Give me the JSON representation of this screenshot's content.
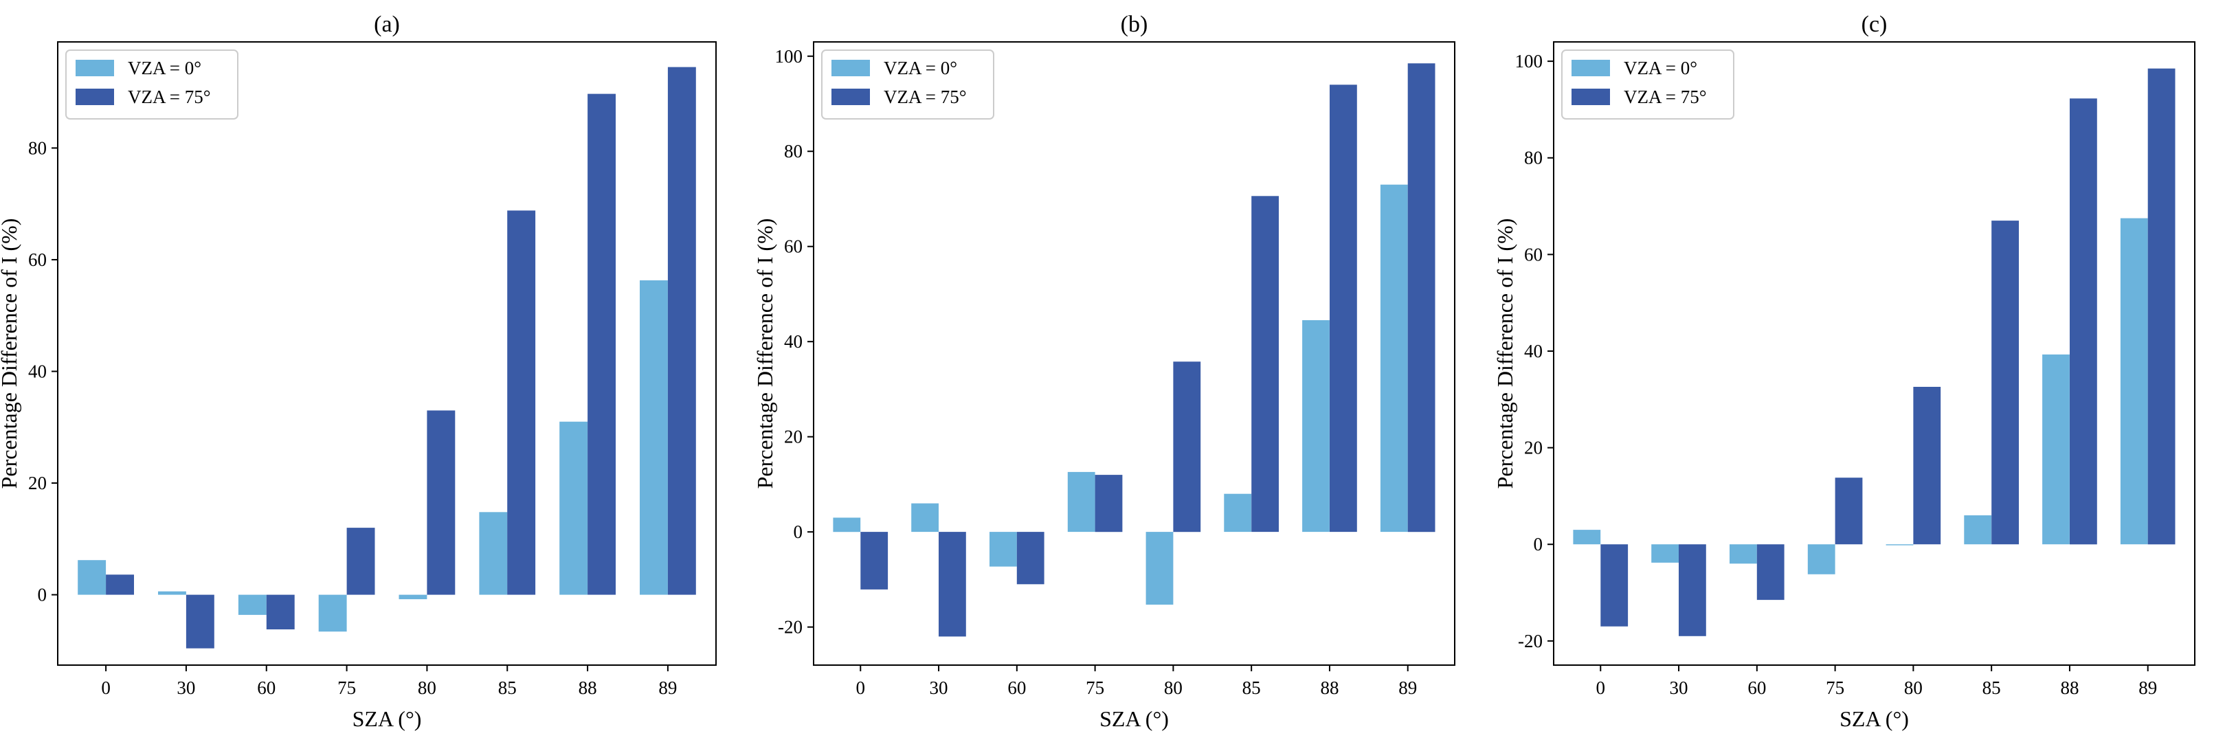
{
  "colors": {
    "vza0": "#6bb3dc",
    "vza75": "#3a5ba6",
    "axis": "#000000",
    "legend_border": "#cccccc"
  },
  "chart_data": [
    {
      "type": "bar",
      "title": "(a)",
      "xlabel": "SZA (°)",
      "ylabel": "Percentage Difference of I (%)",
      "categories": [
        "0",
        "30",
        "60",
        "75",
        "80",
        "85",
        "88",
        "89"
      ],
      "ylim": [
        -12.6,
        99.0
      ],
      "yticks": [
        0,
        20,
        40,
        60,
        80
      ],
      "legend_position": "upper-left",
      "series": [
        {
          "name": "VZA = 0°",
          "values": [
            6.2,
            0.6,
            -3.6,
            -6.6,
            -0.8,
            14.8,
            31.0,
            56.3
          ]
        },
        {
          "name": "VZA = 75°",
          "values": [
            3.6,
            -9.6,
            -6.2,
            12.0,
            33.0,
            68.8,
            89.7,
            94.5
          ]
        }
      ]
    },
    {
      "type": "bar",
      "title": "(b)",
      "xlabel": "SZA (°)",
      "ylabel": "Percentage Difference of I (%)",
      "categories": [
        "0",
        "30",
        "60",
        "75",
        "80",
        "85",
        "88",
        "89"
      ],
      "ylim": [
        -28.0,
        103.0
      ],
      "yticks": [
        -20,
        0,
        20,
        40,
        60,
        80,
        100
      ],
      "legend_position": "upper-left",
      "series": [
        {
          "name": "VZA = 0°",
          "values": [
            3.0,
            6.0,
            -7.3,
            12.6,
            -15.3,
            8.0,
            44.5,
            73.0
          ]
        },
        {
          "name": "VZA = 75°",
          "values": [
            -12.1,
            -22.0,
            -11.0,
            12.0,
            35.8,
            70.6,
            94.0,
            98.5
          ]
        }
      ]
    },
    {
      "type": "bar",
      "title": "(c)",
      "xlabel": "SZA (°)",
      "ylabel": "Percentage Difference of I (%)",
      "categories": [
        "0",
        "30",
        "60",
        "75",
        "80",
        "85",
        "88",
        "89"
      ],
      "ylim": [
        -25.0,
        104.0
      ],
      "yticks": [
        -20,
        0,
        20,
        40,
        60,
        80,
        100
      ],
      "legend_position": "upper-left",
      "series": [
        {
          "name": "VZA = 0°",
          "values": [
            3.0,
            -3.8,
            -4.0,
            -6.2,
            -0.2,
            6.0,
            39.3,
            67.5
          ]
        },
        {
          "name": "VZA = 75°",
          "values": [
            -17.0,
            -19.0,
            -11.5,
            13.8,
            32.6,
            67.0,
            92.3,
            98.5
          ]
        }
      ]
    }
  ]
}
